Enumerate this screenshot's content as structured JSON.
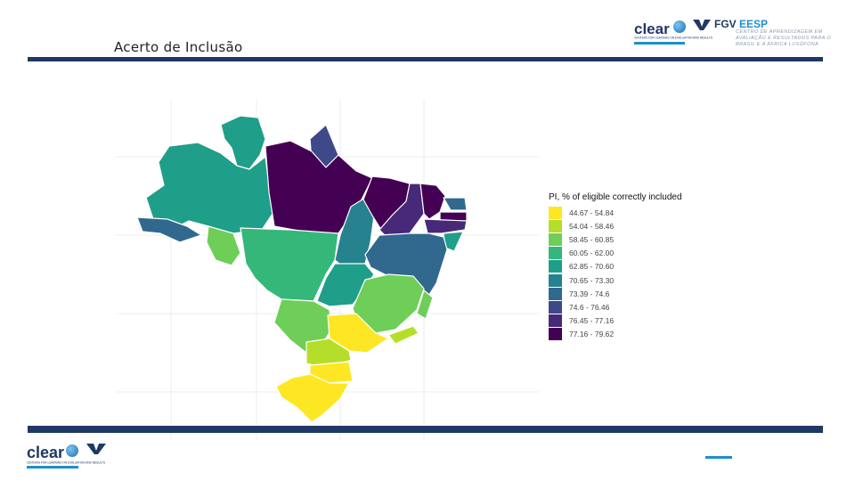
{
  "slide": {
    "title": "Acerto de Inclusão"
  },
  "logos": {
    "clear_word": "clear",
    "clear_tagline": "CENTERS FOR LEARNING ON EVALUATION AND RESULTS",
    "fgv_name": "FGV",
    "fgv_unit": "EESP",
    "fgv_description": "CENTRO DE APRENDIZAGEM EM AVALIAÇÃO E RESULTADOS PARA O BRASIL E A ÁFRICA LUSÓFONA"
  },
  "colors": {
    "bar": "#1f3864",
    "accent": "#1c8fd0"
  },
  "map": {
    "type": "choropleth",
    "region": "Brazil (states)",
    "legend_title": "PI, % of eligible correctly included",
    "legend": [
      {
        "label": "44.67 - 54.84",
        "color": "#fde725"
      },
      {
        "label": "54.04 - 58.46",
        "color": "#b5de2b"
      },
      {
        "label": "58.45 - 60.85",
        "color": "#6ece58"
      },
      {
        "label": "60.05 - 62.00",
        "color": "#35b779"
      },
      {
        "label": "62.85 - 70.60",
        "color": "#1f9e89"
      },
      {
        "label": "70.65 - 73.30",
        "color": "#26828e"
      },
      {
        "label": "73.39 - 74.6",
        "color": "#31688e"
      },
      {
        "label": "74.6 - 76.46",
        "color": "#3e4989"
      },
      {
        "label": "76.45 - 77.16",
        "color": "#482878"
      },
      {
        "label": "77.16 - 79.62",
        "color": "#440154"
      }
    ]
  }
}
